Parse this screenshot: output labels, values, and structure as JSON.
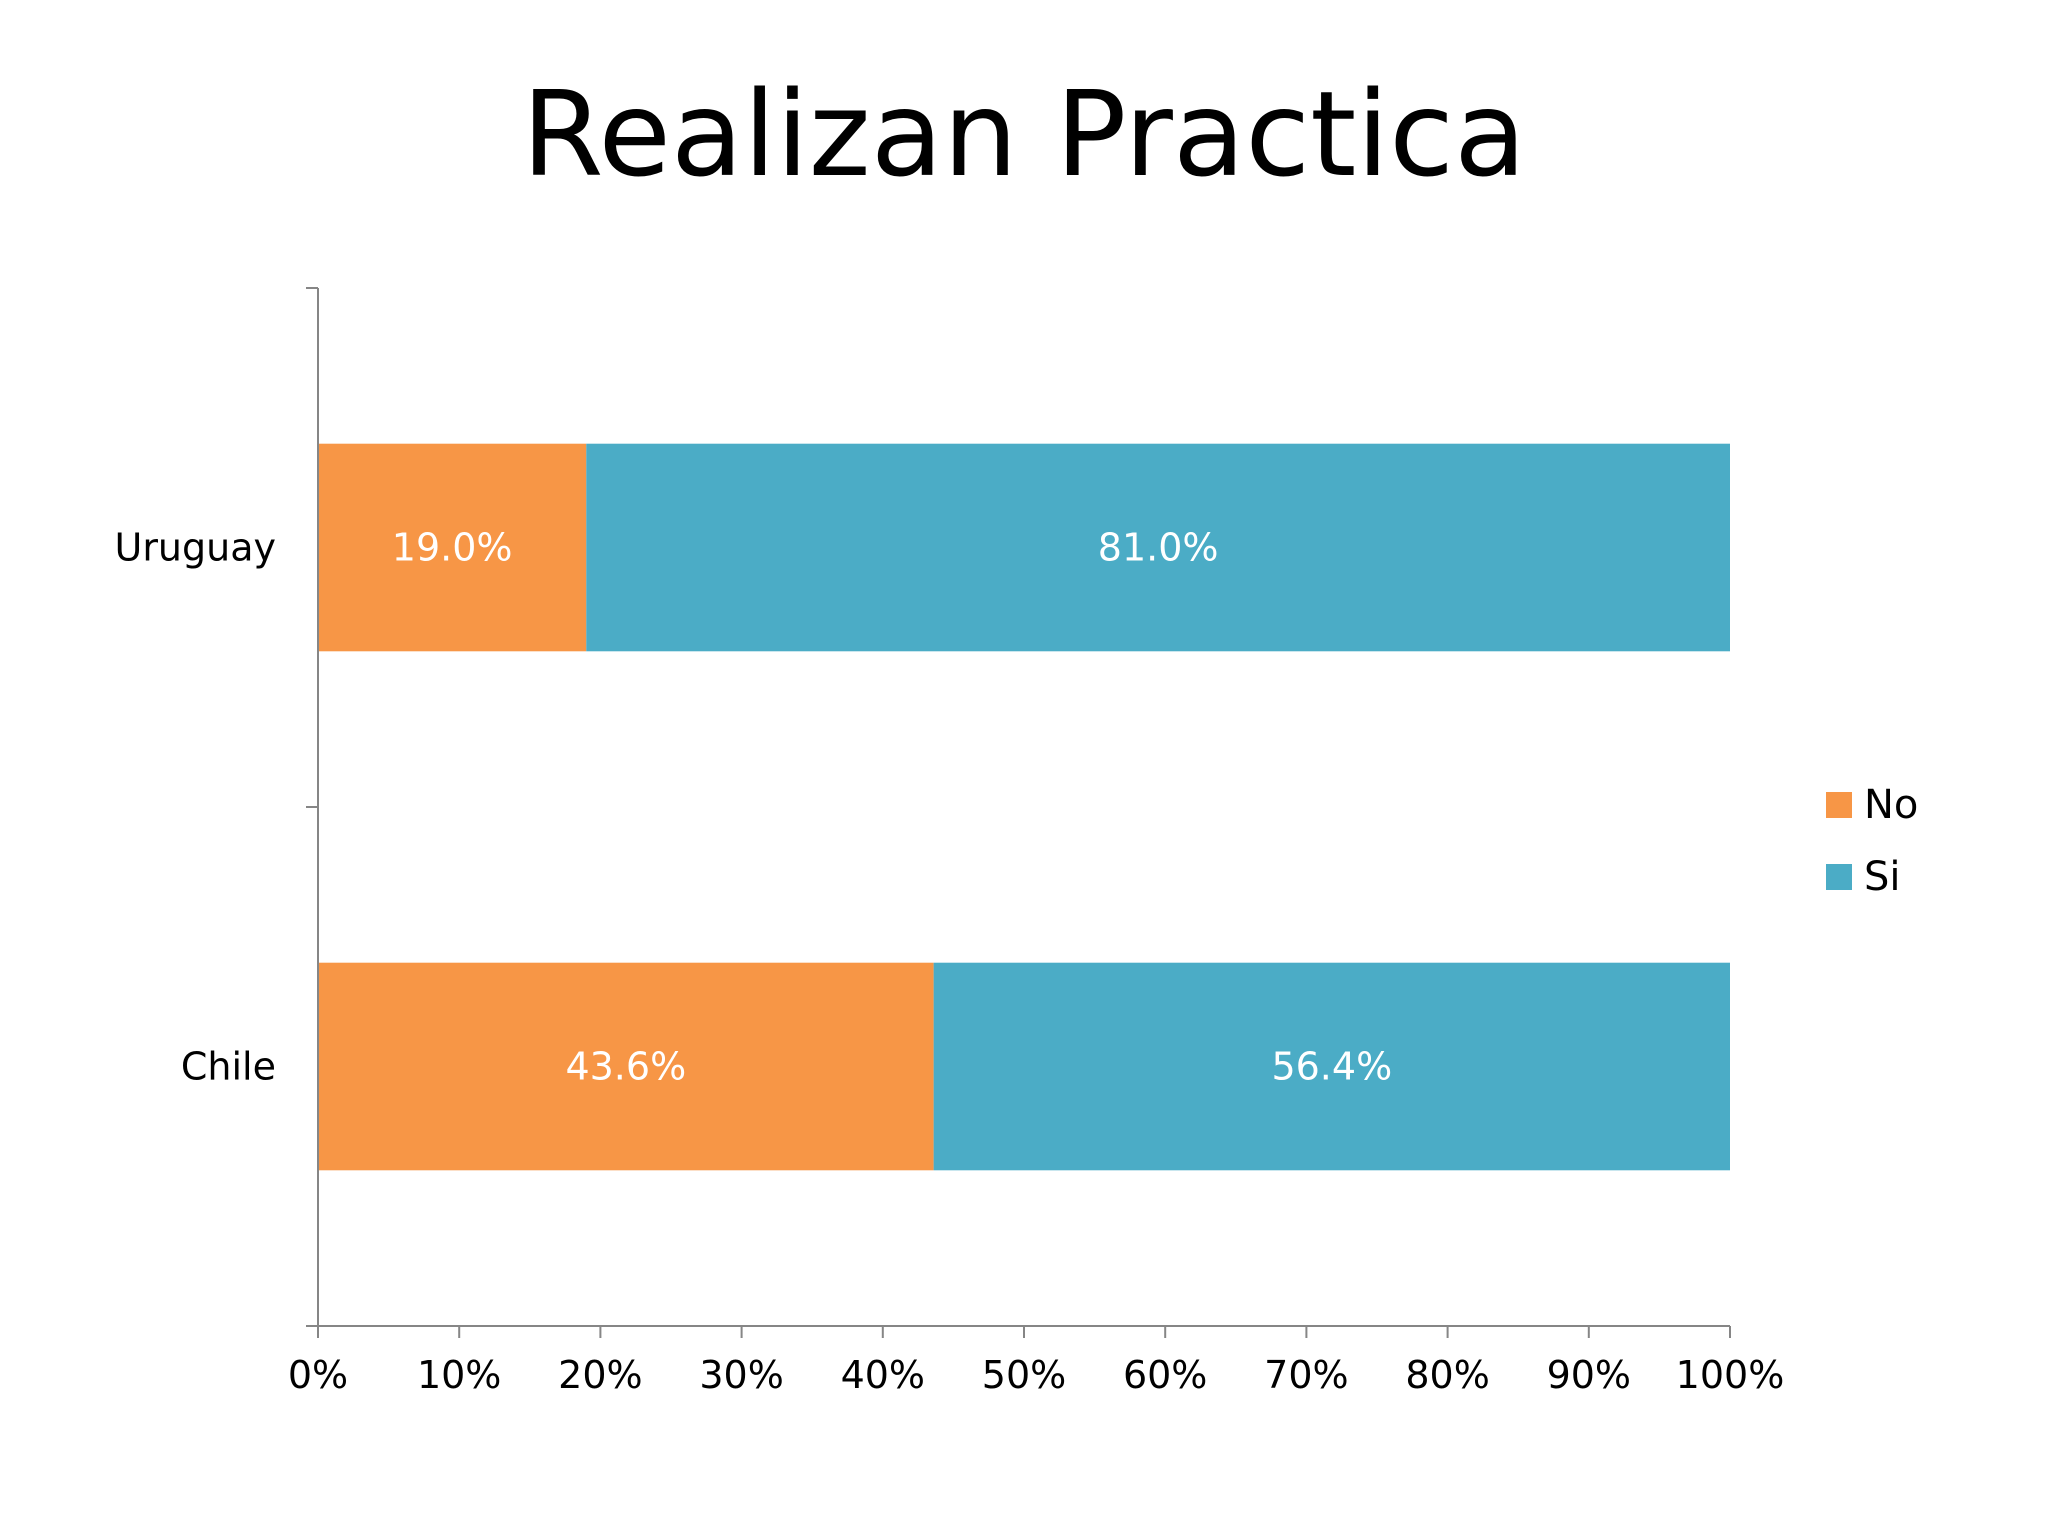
{
  "chart_data": {
    "type": "bar",
    "orientation": "horizontal",
    "stacked": "percent",
    "title": "Realizan Practica",
    "categories": [
      "Uruguay",
      "Chile"
    ],
    "series": [
      {
        "name": "No",
        "color": "#F79646",
        "values": [
          19.0,
          43.6
        ],
        "labels": [
          "19.0%",
          "43.6%"
        ]
      },
      {
        "name": "Si",
        "color": "#4BACC6",
        "values": [
          81.0,
          56.4
        ],
        "labels": [
          "81.0%",
          "56.4%"
        ]
      }
    ],
    "xlim": [
      0,
      100
    ],
    "xticks": [
      0,
      10,
      20,
      30,
      40,
      50,
      60,
      70,
      80,
      90,
      100
    ],
    "xtick_labels": [
      "0%",
      "10%",
      "20%",
      "30%",
      "40%",
      "50%",
      "60%",
      "70%",
      "80%",
      "90%",
      "100%"
    ],
    "grid": false,
    "legend_position": "right"
  }
}
